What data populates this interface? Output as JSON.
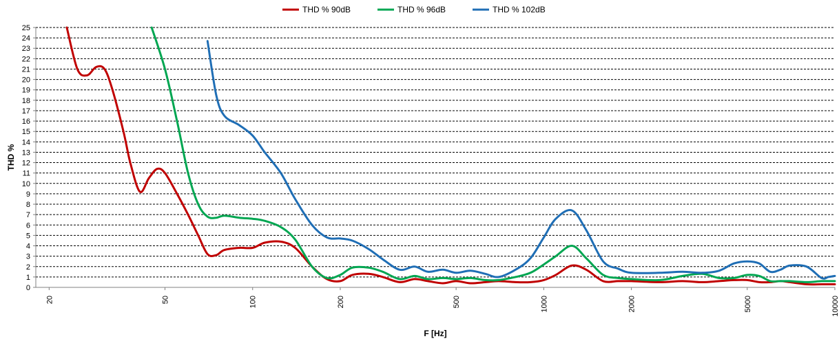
{
  "chart_data": {
    "type": "line",
    "title": "",
    "xlabel": "F [Hz]",
    "ylabel": "THD %",
    "x_scale": "log",
    "xlim": [
      18,
      10000
    ],
    "ylim": [
      0,
      25
    ],
    "x_ticks": [
      20,
      50,
      100,
      200,
      500,
      1000,
      2000,
      5000,
      10000
    ],
    "y_ticks": [
      0,
      1,
      2,
      3,
      4,
      5,
      6,
      7,
      8,
      9,
      10,
      11,
      12,
      13,
      14,
      15,
      16,
      17,
      18,
      19,
      20,
      21,
      22,
      23,
      24,
      25
    ],
    "grid": "horizontal",
    "legend_position": "top",
    "series": [
      {
        "name": "THD % 90dB",
        "color": "#C00000",
        "points": [
          [
            23,
            25
          ],
          [
            25,
            21
          ],
          [
            27,
            20.4
          ],
          [
            29,
            21.2
          ],
          [
            31,
            21
          ],
          [
            33,
            19
          ],
          [
            36,
            15
          ],
          [
            38,
            12
          ],
          [
            41,
            9.2
          ],
          [
            44,
            10.5
          ],
          [
            47,
            11.4
          ],
          [
            50,
            11
          ],
          [
            55,
            9
          ],
          [
            60,
            7
          ],
          [
            65,
            5
          ],
          [
            70,
            3.2
          ],
          [
            75,
            3.1
          ],
          [
            80,
            3.6
          ],
          [
            90,
            3.8
          ],
          [
            100,
            3.8
          ],
          [
            110,
            4.3
          ],
          [
            125,
            4.4
          ],
          [
            140,
            3.8
          ],
          [
            160,
            2
          ],
          [
            180,
            0.8
          ],
          [
            200,
            0.6
          ],
          [
            220,
            1.2
          ],
          [
            250,
            1.3
          ],
          [
            280,
            1
          ],
          [
            320,
            0.5
          ],
          [
            360,
            0.8
          ],
          [
            400,
            0.6
          ],
          [
            450,
            0.4
          ],
          [
            500,
            0.6
          ],
          [
            560,
            0.4
          ],
          [
            630,
            0.5
          ],
          [
            700,
            0.6
          ],
          [
            800,
            0.5
          ],
          [
            900,
            0.5
          ],
          [
            1000,
            0.7
          ],
          [
            1100,
            1.2
          ],
          [
            1250,
            2.1
          ],
          [
            1400,
            1.7
          ],
          [
            1600,
            0.6
          ],
          [
            1800,
            0.6
          ],
          [
            2000,
            0.6
          ],
          [
            2500,
            0.5
          ],
          [
            3000,
            0.6
          ],
          [
            3500,
            0.5
          ],
          [
            4000,
            0.6
          ],
          [
            4500,
            0.7
          ],
          [
            5000,
            0.7
          ],
          [
            5500,
            0.5
          ],
          [
            6000,
            0.5
          ],
          [
            6500,
            0.6
          ],
          [
            7000,
            0.5
          ],
          [
            8000,
            0.3
          ],
          [
            9000,
            0.3
          ],
          [
            10000,
            0.3
          ]
        ]
      },
      {
        "name": "THD % 96dB",
        "color": "#00A651",
        "points": [
          [
            45,
            25
          ],
          [
            50,
            21
          ],
          [
            55,
            16
          ],
          [
            60,
            11
          ],
          [
            65,
            8
          ],
          [
            70,
            6.8
          ],
          [
            75,
            6.7
          ],
          [
            80,
            6.9
          ],
          [
            90,
            6.7
          ],
          [
            100,
            6.6
          ],
          [
            110,
            6.4
          ],
          [
            125,
            5.8
          ],
          [
            140,
            4.6
          ],
          [
            160,
            2
          ],
          [
            180,
            0.9
          ],
          [
            200,
            1.2
          ],
          [
            220,
            1.9
          ],
          [
            250,
            1.9
          ],
          [
            280,
            1.5
          ],
          [
            320,
            0.8
          ],
          [
            360,
            1.1
          ],
          [
            400,
            0.8
          ],
          [
            450,
            0.9
          ],
          [
            500,
            0.8
          ],
          [
            560,
            0.9
          ],
          [
            630,
            0.7
          ],
          [
            700,
            0.7
          ],
          [
            800,
            1
          ],
          [
            900,
            1.4
          ],
          [
            1000,
            2.2
          ],
          [
            1100,
            3
          ],
          [
            1250,
            4
          ],
          [
            1400,
            2.8
          ],
          [
            1600,
            1.2
          ],
          [
            1800,
            0.9
          ],
          [
            2000,
            0.8
          ],
          [
            2500,
            0.7
          ],
          [
            3000,
            1.1
          ],
          [
            3500,
            1.3
          ],
          [
            4000,
            0.9
          ],
          [
            4500,
            0.9
          ],
          [
            5000,
            1.2
          ],
          [
            5500,
            1.1
          ],
          [
            6000,
            0.6
          ],
          [
            6500,
            0.6
          ],
          [
            7000,
            0.6
          ],
          [
            8000,
            0.5
          ],
          [
            9000,
            0.6
          ],
          [
            10000,
            0.6
          ]
        ]
      },
      {
        "name": "THD % 102dB",
        "color": "#1F6EB5",
        "points": [
          [
            70,
            23.7
          ],
          [
            75,
            18.5
          ],
          [
            80,
            16.5
          ],
          [
            90,
            15.6
          ],
          [
            100,
            14.6
          ],
          [
            110,
            13
          ],
          [
            125,
            11
          ],
          [
            140,
            8.5
          ],
          [
            160,
            6
          ],
          [
            180,
            4.8
          ],
          [
            200,
            4.7
          ],
          [
            220,
            4.5
          ],
          [
            250,
            3.7
          ],
          [
            280,
            2.7
          ],
          [
            320,
            1.7
          ],
          [
            360,
            2
          ],
          [
            400,
            1.5
          ],
          [
            450,
            1.7
          ],
          [
            500,
            1.4
          ],
          [
            560,
            1.6
          ],
          [
            630,
            1.3
          ],
          [
            700,
            1
          ],
          [
            800,
            1.7
          ],
          [
            900,
            2.8
          ],
          [
            1000,
            4.8
          ],
          [
            1100,
            6.6
          ],
          [
            1250,
            7.4
          ],
          [
            1400,
            5.5
          ],
          [
            1600,
            2.5
          ],
          [
            1800,
            1.8
          ],
          [
            2000,
            1.4
          ],
          [
            2500,
            1.4
          ],
          [
            3000,
            1.5
          ],
          [
            3500,
            1.4
          ],
          [
            4000,
            1.6
          ],
          [
            4500,
            2.3
          ],
          [
            5000,
            2.5
          ],
          [
            5500,
            2.3
          ],
          [
            6000,
            1.5
          ],
          [
            6500,
            1.7
          ],
          [
            7000,
            2.1
          ],
          [
            8000,
            2
          ],
          [
            9000,
            0.9
          ],
          [
            9500,
            1
          ],
          [
            10000,
            1.1
          ]
        ]
      }
    ]
  }
}
